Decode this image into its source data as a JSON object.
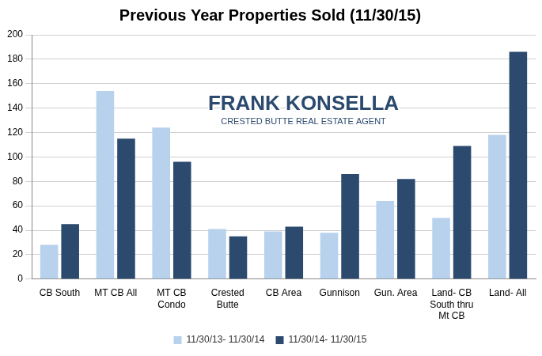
{
  "chart_data": {
    "type": "bar",
    "title": "Previous Year Properties Sold (11/30/15)",
    "annotations": [
      "FRANK KONSELLA",
      "CRESTED BUTTE REAL ESTATE AGENT"
    ],
    "categories": [
      "CB South",
      "MT CB All",
      [
        "MT CB",
        "Condo"
      ],
      [
        "Crested",
        "Butte"
      ],
      "CB Area",
      "Gunnison",
      "Gun. Area",
      [
        "Land- CB",
        "South thru",
        "Mt CB"
      ],
      "Land- All"
    ],
    "series": [
      {
        "name": "11/30/13- 11/30/14",
        "color": "#b8d1ec",
        "values": [
          28,
          154,
          124,
          41,
          39,
          38,
          64,
          50,
          118
        ]
      },
      {
        "name": "11/30/14- 11/30/15",
        "color": "#2b4a6e",
        "values": [
          45,
          115,
          96,
          35,
          43,
          86,
          82,
          109,
          186
        ]
      }
    ],
    "ylim": [
      0,
      200
    ],
    "yticks": [
      0,
      20,
      40,
      60,
      80,
      100,
      120,
      140,
      160,
      180,
      200
    ],
    "grid": true,
    "legend": "bottom"
  }
}
